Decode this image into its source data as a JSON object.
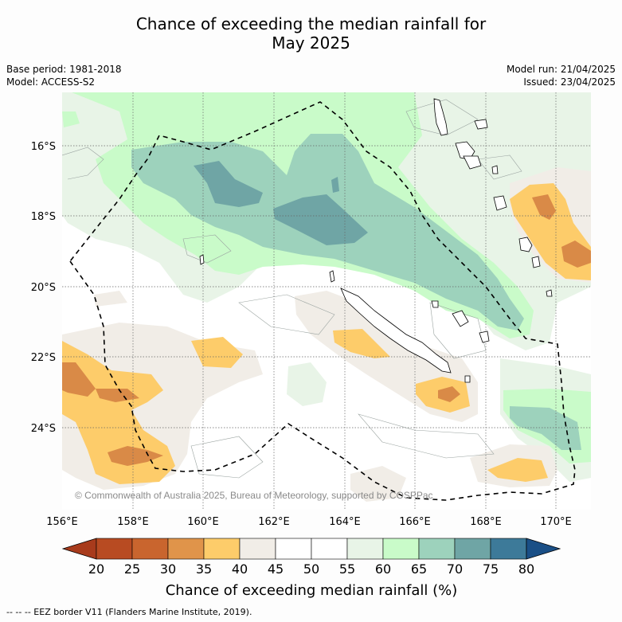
{
  "title": {
    "line1": "Chance of exceeding the median rainfall for",
    "line2": "May 2025"
  },
  "meta": {
    "base_period": "Base period: 1981-2018",
    "model": "Model: ACCESS-S2",
    "model_run": "Model run: 21/04/2025",
    "issued": "Issued: 23/04/2025"
  },
  "map": {
    "lat_labels": [
      "16°S",
      "18°S",
      "20°S",
      "22°S",
      "24°S"
    ],
    "lon_labels": [
      "156°E",
      "158°E",
      "160°E",
      "162°E",
      "164°E",
      "166°E",
      "168°E",
      "170°E"
    ],
    "copyright": "© Commonwealth of Australia 2025, Bureau of Meteorology, supported by COSPPac"
  },
  "colorbar": {
    "labels": [
      "20",
      "25",
      "30",
      "35",
      "40",
      "45",
      "50",
      "55",
      "60",
      "65",
      "70",
      "75",
      "80"
    ],
    "colors": [
      "#a83b1c",
      "#b84b22",
      "#c9652e",
      "#e0944a",
      "#fdcc6a",
      "#f1ede7",
      "#ffffff",
      "#ffffff",
      "#e8f4e7",
      "#c9fbc9",
      "#9dd2bc",
      "#6fa5a5",
      "#3d7a99",
      "#1a4f86"
    ],
    "title": "Chance of exceeding median rainfall (%)"
  },
  "footer": "--  --  -- EEZ border V11 (Flanders Marine Institute, 2019).",
  "palette": {
    "green_light": "#e8f4e7",
    "green": "#c9fbc9",
    "teal": "#9dd2bc",
    "teal_dark": "#6fa5a5",
    "beige": "#f1ede7",
    "orange_light": "#fdcc6a",
    "orange": "#e0944a",
    "brown": "#d98a47"
  }
}
